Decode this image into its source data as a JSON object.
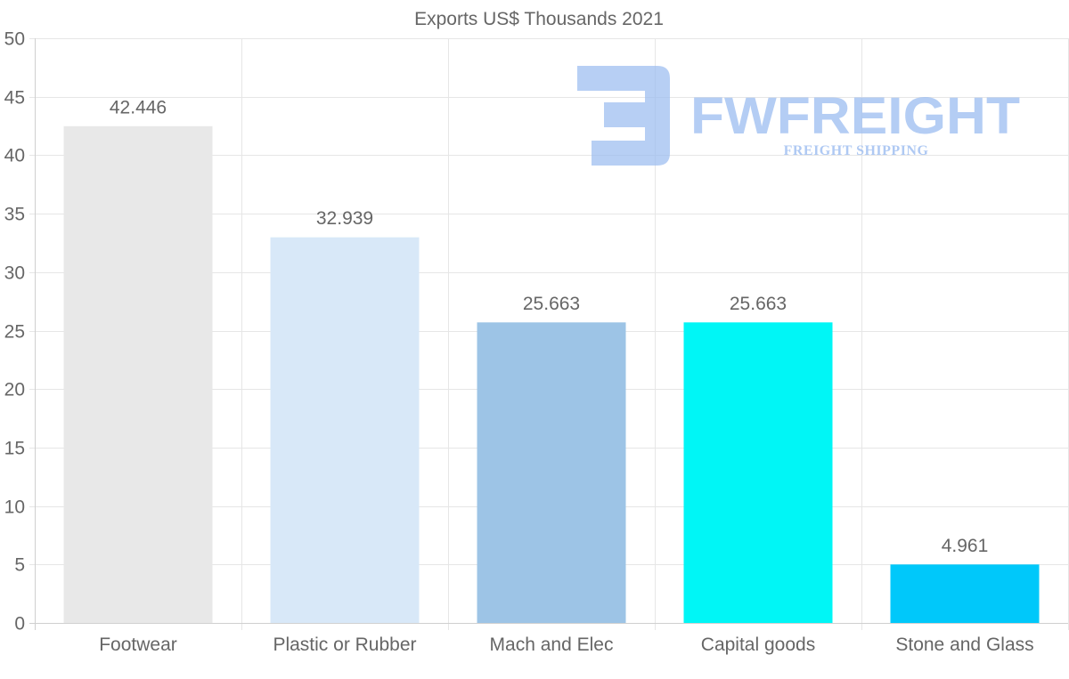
{
  "chart_data": {
    "type": "bar",
    "title": "Exports US$ Thousands 2021",
    "categories": [
      "Footwear",
      "Plastic or Rubber",
      "Mach and Elec",
      "Capital goods",
      "Stone and Glass"
    ],
    "values": [
      42.446,
      32.939,
      25.663,
      25.663,
      4.961
    ],
    "data_labels": [
      "42.446",
      "32.939",
      "25.663",
      "25.663",
      "4.961"
    ],
    "bar_colors": [
      "#e8e8e8",
      "#d8e8f8",
      "#9dc4e6",
      "#00f6f6",
      "#00c8fa"
    ],
    "ylim": [
      0,
      50
    ],
    "yticks": [
      0,
      5,
      10,
      15,
      20,
      25,
      30,
      35,
      40,
      45,
      50
    ],
    "xlabel": "",
    "ylabel": "",
    "grid": true,
    "legend": "none"
  },
  "watermark": {
    "brand": "FWFREIGHT",
    "tagline": "FREIGHT SHIPPING",
    "color": "#9bbcf0"
  },
  "colors": {
    "grid": "#e6e6e6",
    "axis": "#d0d0d0",
    "text": "#666666"
  }
}
